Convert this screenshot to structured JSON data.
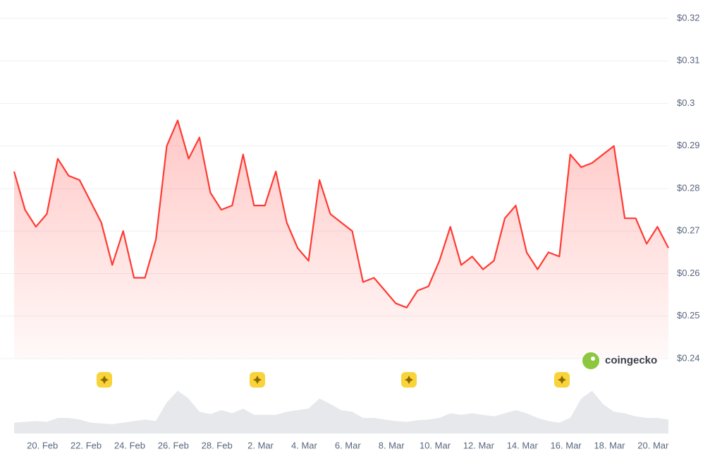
{
  "chart_data": {
    "type": "line",
    "x": [
      -1.3,
      -0.8,
      -0.3,
      0.2,
      0.7,
      1.2,
      1.7,
      2.2,
      2.7,
      3.2,
      3.7,
      4.2,
      4.7,
      5.2,
      5.7,
      6.2,
      6.7,
      7.2,
      7.7,
      8.2,
      8.7,
      9.2,
      9.7,
      10.2,
      10.7,
      11.2,
      11.7,
      12.2,
      12.7,
      13.2,
      13.7,
      14.2,
      14.7,
      15.2,
      15.7,
      16.2,
      16.7,
      17.2,
      17.7,
      18.2,
      18.7,
      19.2,
      19.7,
      20.2,
      20.7,
      21.2,
      21.7,
      22.2,
      22.7,
      23.2,
      23.7,
      24.2,
      24.7,
      25.2,
      25.7,
      26.2,
      26.7,
      27.2,
      27.7,
      28.2,
      28.7
    ],
    "series": [
      {
        "color": "#ff3a33",
        "values": [
          0.284,
          0.275,
          0.271,
          0.274,
          0.287,
          0.283,
          0.282,
          0.277,
          0.272,
          0.262,
          0.27,
          0.259,
          0.259,
          0.268,
          0.29,
          0.296,
          0.287,
          0.292,
          0.279,
          0.275,
          0.276,
          0.288,
          0.276,
          0.276,
          0.284,
          0.272,
          0.266,
          0.263,
          0.282,
          0.274,
          0.272,
          0.27,
          0.258,
          0.259,
          0.256,
          0.253,
          0.252,
          0.256,
          0.257,
          0.263,
          0.271,
          0.262,
          0.264,
          0.261,
          0.263,
          0.273,
          0.276,
          0.265,
          0.261,
          0.265,
          0.264,
          0.288,
          0.285,
          0.286,
          0.288,
          0.29,
          0.273,
          0.273,
          0.267,
          0.271,
          0.266
        ]
      },
      {
        "color": "#e6e8ec",
        "axis": "y2",
        "values": [
          14,
          15,
          16,
          15,
          20,
          20,
          18,
          14,
          13,
          12,
          14,
          16,
          18,
          16,
          40,
          55,
          45,
          28,
          25,
          30,
          26,
          32,
          24,
          24,
          24,
          28,
          30,
          32,
          45,
          38,
          30,
          28,
          20,
          20,
          18,
          16,
          15,
          17,
          18,
          20,
          26,
          24,
          26,
          24,
          22,
          26,
          30,
          26,
          20,
          16,
          14,
          20,
          45,
          55,
          38,
          28,
          26,
          22,
          20,
          20,
          18
        ]
      }
    ],
    "xlim": [
      -1.3,
      28.7
    ],
    "xticks": [
      {
        "value": 0,
        "label": "20. Feb"
      },
      {
        "value": 2,
        "label": "22. Feb"
      },
      {
        "value": 4,
        "label": "24. Feb"
      },
      {
        "value": 6,
        "label": "26. Feb"
      },
      {
        "value": 8,
        "label": "28. Feb"
      },
      {
        "value": 10,
        "label": "2. Mar"
      },
      {
        "value": 12,
        "label": "4. Mar"
      },
      {
        "value": 14,
        "label": "6. Mar"
      },
      {
        "value": 16,
        "label": "8. Mar"
      },
      {
        "value": 18,
        "label": "10. Mar"
      },
      {
        "value": 20,
        "label": "12. Mar"
      },
      {
        "value": 22,
        "label": "14. Mar"
      },
      {
        "value": 24,
        "label": "16. Mar"
      },
      {
        "value": 26,
        "label": "18. Mar"
      },
      {
        "value": 28,
        "label": "20. Mar"
      }
    ],
    "ylim": [
      0.24,
      0.32
    ],
    "yticks": [
      {
        "value": 0.24,
        "label": "$0.24"
      },
      {
        "value": 0.25,
        "label": "$0.25"
      },
      {
        "value": 0.26,
        "label": "$0.26"
      },
      {
        "value": 0.27,
        "label": "$0.27"
      },
      {
        "value": 0.28,
        "label": "$0.28"
      },
      {
        "value": 0.29,
        "label": "$0.29"
      },
      {
        "value": 0.3,
        "label": "$0.3"
      },
      {
        "value": 0.31,
        "label": "$0.31"
      },
      {
        "value": 0.32,
        "label": "$0.32"
      }
    ],
    "y2lim": [
      0,
      100
    ],
    "grid": true,
    "watermark": "coingecko"
  }
}
